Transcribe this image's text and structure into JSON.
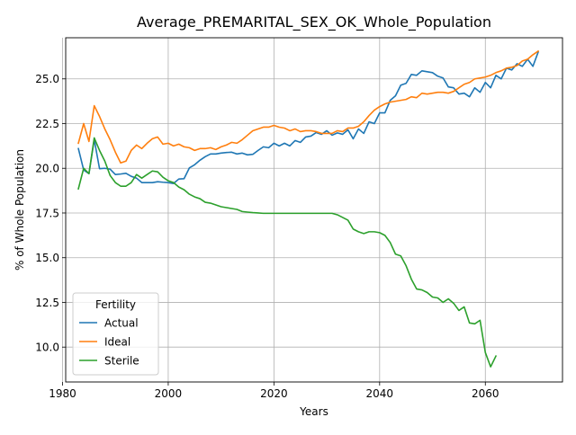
{
  "chart_data": {
    "type": "line",
    "title": "Average_PREMARITAL_SEX_OK_Whole_Population",
    "xlabel": "Years",
    "ylabel": "% of Whole Population",
    "xlim": [
      1980.6,
      2074.6
    ],
    "ylim": [
      8.05,
      27.3
    ],
    "xticks": [
      1980,
      2000,
      2020,
      2040,
      2060
    ],
    "yticks": [
      10.0,
      12.5,
      15.0,
      17.5,
      20.0,
      22.5,
      25.0
    ],
    "grid": true,
    "legend": {
      "title": "Fertility",
      "placement": "lower-left"
    },
    "series": [
      {
        "name": "Actual",
        "color": "#1f77b4",
        "x": [
          1983,
          1984,
          1985,
          1986,
          1987,
          1988,
          1989,
          1990,
          1991,
          1992,
          1993,
          1994,
          1995,
          1996,
          1997,
          1998,
          1999,
          2000,
          2001,
          2002,
          2003,
          2004,
          2005,
          2006,
          2007,
          2008,
          2009,
          2010,
          2011,
          2012,
          2013,
          2014,
          2015,
          2016,
          2017,
          2018,
          2019,
          2020,
          2021,
          2022,
          2023,
          2024,
          2025,
          2026,
          2027,
          2028,
          2029,
          2030,
          2031,
          2032,
          2033,
          2034,
          2035,
          2036,
          2037,
          2038,
          2039,
          2040,
          2041,
          2042,
          2043,
          2044,
          2045,
          2046,
          2047,
          2048,
          2049,
          2050,
          2051,
          2052,
          2053,
          2054,
          2055,
          2056,
          2057,
          2058,
          2059,
          2060,
          2061,
          2062,
          2063,
          2064,
          2065,
          2066,
          2067,
          2068,
          2069,
          2070
        ],
        "values": [
          21.1,
          19.9,
          19.7,
          21.6,
          19.98,
          20.0,
          19.95,
          19.65,
          19.68,
          19.72,
          19.55,
          19.45,
          19.2,
          19.2,
          19.2,
          19.25,
          19.22,
          19.2,
          19.15,
          19.4,
          19.42,
          20.02,
          20.2,
          20.45,
          20.65,
          20.8,
          20.8,
          20.85,
          20.88,
          20.9,
          20.8,
          20.85,
          20.75,
          20.78,
          21.0,
          21.2,
          21.15,
          21.4,
          21.25,
          21.4,
          21.25,
          21.55,
          21.45,
          21.75,
          21.8,
          22.0,
          21.9,
          22.1,
          21.85,
          21.98,
          21.9,
          22.15,
          21.65,
          22.2,
          21.95,
          22.6,
          22.5,
          23.1,
          23.1,
          23.8,
          24.05,
          24.65,
          24.75,
          25.25,
          25.2,
          25.45,
          25.4,
          25.35,
          25.15,
          25.05,
          24.55,
          24.5,
          24.15,
          24.2,
          24.0,
          24.5,
          24.25,
          24.8,
          24.5,
          25.2,
          25.0,
          25.6,
          25.5,
          25.85,
          25.7,
          26.1,
          25.7,
          26.5
        ]
      },
      {
        "name": "Ideal",
        "color": "#ff7f0e",
        "x": [
          1983,
          1984,
          1985,
          1986,
          1987,
          1988,
          1989,
          1990,
          1991,
          1992,
          1993,
          1994,
          1995,
          1996,
          1997,
          1998,
          1999,
          2000,
          2001,
          2002,
          2003,
          2004,
          2005,
          2006,
          2007,
          2008,
          2009,
          2010,
          2011,
          2012,
          2013,
          2014,
          2015,
          2016,
          2017,
          2018,
          2019,
          2020,
          2021,
          2022,
          2023,
          2024,
          2025,
          2026,
          2027,
          2028,
          2029,
          2030,
          2031,
          2032,
          2033,
          2034,
          2035,
          2036,
          2037,
          2038,
          2039,
          2040,
          2041,
          2042,
          2043,
          2044,
          2045,
          2046,
          2047,
          2048,
          2049,
          2050,
          2051,
          2052,
          2053,
          2054,
          2055,
          2056,
          2057,
          2058,
          2059,
          2060,
          2061,
          2062,
          2063,
          2064,
          2065,
          2066,
          2067,
          2068,
          2069,
          2070
        ],
        "values": [
          21.4,
          22.5,
          21.5,
          23.5,
          22.9,
          22.2,
          21.6,
          20.9,
          20.3,
          20.4,
          21.0,
          21.3,
          21.1,
          21.4,
          21.65,
          21.75,
          21.35,
          21.4,
          21.25,
          21.35,
          21.2,
          21.15,
          21.0,
          21.1,
          21.1,
          21.15,
          21.05,
          21.2,
          21.3,
          21.45,
          21.4,
          21.6,
          21.85,
          22.1,
          22.2,
          22.3,
          22.3,
          22.4,
          22.3,
          22.25,
          22.1,
          22.2,
          22.05,
          22.1,
          22.1,
          22.05,
          21.95,
          21.95,
          21.95,
          22.1,
          22.05,
          22.25,
          22.25,
          22.35,
          22.6,
          22.95,
          23.25,
          23.45,
          23.6,
          23.7,
          23.75,
          23.8,
          23.85,
          24.0,
          23.95,
          24.2,
          24.15,
          24.2,
          24.25,
          24.25,
          24.2,
          24.3,
          24.5,
          24.7,
          24.8,
          25.0,
          25.05,
          25.1,
          25.2,
          25.35,
          25.45,
          25.6,
          25.65,
          25.75,
          26.0,
          26.1,
          26.35,
          26.55
        ]
      },
      {
        "name": "Sterile",
        "color": "#2ca02c",
        "x": [
          1983,
          1984,
          1985,
          1986,
          1987,
          1988,
          1989,
          1990,
          1991,
          1992,
          1993,
          1994,
          1995,
          1996,
          1997,
          1998,
          1999,
          2000,
          2001,
          2002,
          2003,
          2004,
          2005,
          2006,
          2007,
          2008,
          2009,
          2010,
          2011,
          2012,
          2013,
          2014,
          2015,
          2016,
          2017,
          2018,
          2019,
          2020,
          2021,
          2022,
          2023,
          2024,
          2025,
          2026,
          2027,
          2028,
          2029,
          2030,
          2031,
          2032,
          2033,
          2034,
          2035,
          2036,
          2037,
          2038,
          2039,
          2040,
          2041,
          2042,
          2043,
          2044,
          2045,
          2046,
          2047,
          2048,
          2049,
          2050,
          2051,
          2052,
          2053,
          2054,
          2055,
          2056,
          2057,
          2058,
          2059,
          2060,
          2061,
          2062
        ],
        "values": [
          18.85,
          20.0,
          19.7,
          21.7,
          21.0,
          20.4,
          19.6,
          19.2,
          19.0,
          19.0,
          19.2,
          19.65,
          19.45,
          19.65,
          19.85,
          19.8,
          19.5,
          19.3,
          19.2,
          18.95,
          18.8,
          18.55,
          18.4,
          18.3,
          18.1,
          18.05,
          17.95,
          17.85,
          17.8,
          17.75,
          17.7,
          17.58,
          17.55,
          17.52,
          17.5,
          17.48,
          17.48,
          17.48,
          17.48,
          17.48,
          17.48,
          17.48,
          17.48,
          17.48,
          17.48,
          17.48,
          17.48,
          17.48,
          17.48,
          17.4,
          17.25,
          17.1,
          16.6,
          16.45,
          16.35,
          16.45,
          16.45,
          16.4,
          16.25,
          15.85,
          15.2,
          15.1,
          14.55,
          13.8,
          13.25,
          13.2,
          13.05,
          12.8,
          12.75,
          12.5,
          12.7,
          12.45,
          12.05,
          12.25,
          11.35,
          11.3,
          11.5,
          9.7,
          8.9,
          9.5
        ]
      }
    ]
  }
}
